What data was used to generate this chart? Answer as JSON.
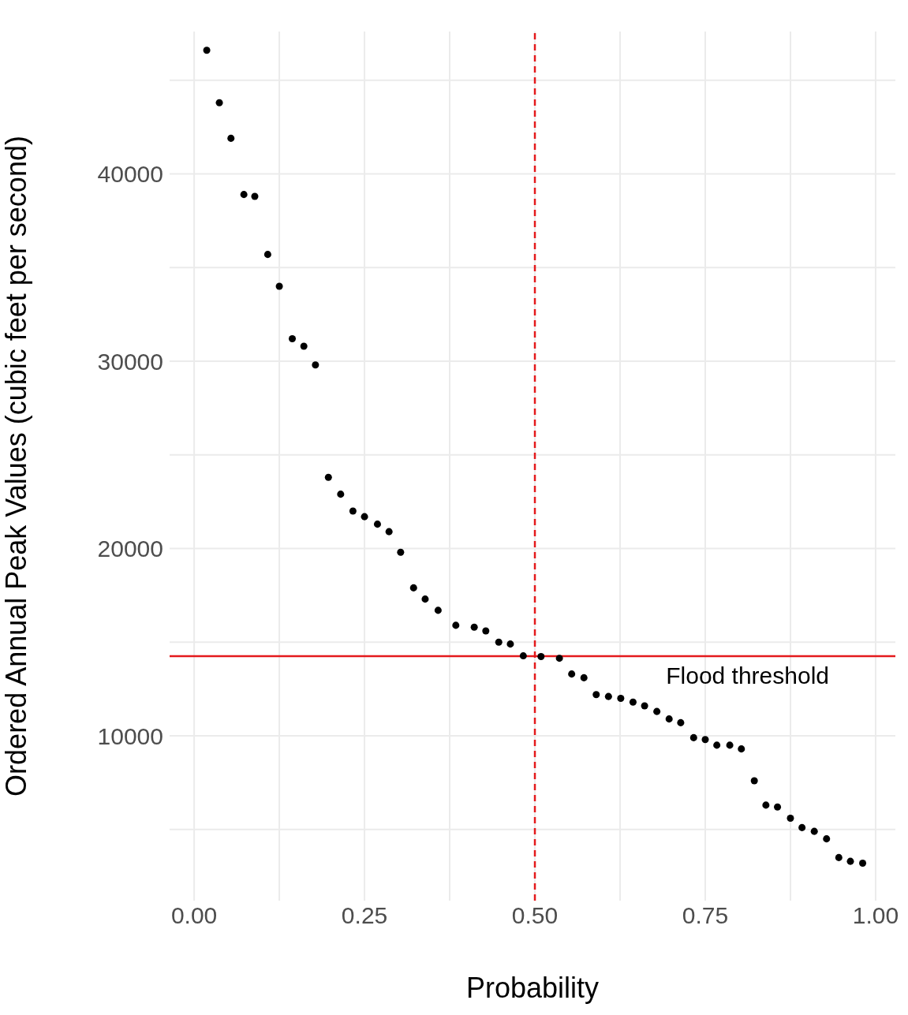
{
  "chart_data": {
    "type": "scatter",
    "xlabel": "Probability",
    "ylabel": "Ordered Annual Peak Values (cubic feet per second)",
    "x": [
      0.0185,
      0.037,
      0.054,
      0.073,
      0.089,
      0.108,
      0.125,
      0.144,
      0.161,
      0.178,
      0.197,
      0.215,
      0.233,
      0.25,
      0.269,
      0.286,
      0.303,
      0.322,
      0.339,
      0.358,
      0.384,
      0.411,
      0.428,
      0.447,
      0.464,
      0.483,
      0.509,
      0.536,
      0.554,
      0.572,
      0.59,
      0.608,
      0.626,
      0.644,
      0.661,
      0.679,
      0.697,
      0.714,
      0.733,
      0.75,
      0.767,
      0.786,
      0.803,
      0.822,
      0.839,
      0.856,
      0.875,
      0.892,
      0.91,
      0.928,
      0.946,
      0.963,
      0.981
    ],
    "series": [
      {
        "color": "#000000",
        "values": [
          46600,
          43800,
          41900,
          38900,
          38800,
          35700,
          34000,
          31200,
          30800,
          29800,
          23800,
          22900,
          22000,
          21700,
          21300,
          20900,
          19800,
          17900,
          17300,
          16700,
          15900,
          15800,
          15600,
          15000,
          14900,
          14270,
          14230,
          14140,
          13300,
          13100,
          12200,
          12100,
          12000,
          11800,
          11600,
          11300,
          10900,
          10700,
          9900,
          9800,
          9500,
          9500,
          9300,
          7600,
          6300,
          6200,
          5600,
          5100,
          4900,
          4500,
          3500,
          3300,
          3200
        ]
      }
    ],
    "xlim": [
      -0.036,
      1.029
    ],
    "ylim": [
      1200,
      47600
    ],
    "xticks": [
      {
        "value": 0,
        "label": "0.00"
      },
      {
        "value": 0.125,
        "label": null
      },
      {
        "value": 0.25,
        "label": "0.25"
      },
      {
        "value": 0.375,
        "label": null
      },
      {
        "value": 0.5,
        "label": "0.50"
      },
      {
        "value": 0.625,
        "label": null
      },
      {
        "value": 0.75,
        "label": "0.75"
      },
      {
        "value": 0.875,
        "label": null
      },
      {
        "value": 1,
        "label": "1.00"
      }
    ],
    "yticks": [
      {
        "value": 5000,
        "label": null
      },
      10000,
      {
        "value": 15000,
        "label": null
      },
      20000,
      {
        "value": 25000,
        "label": null
      },
      30000,
      {
        "value": 35000,
        "label": null
      },
      40000,
      {
        "value": 45000,
        "label": null
      }
    ],
    "grid": true,
    "marker": "circle",
    "legend": false,
    "ref_lines": [
      {
        "axis": "x",
        "value": 0.5,
        "color": "#e41a1c",
        "line_style": "dashed"
      },
      {
        "axis": "y",
        "value": 14250,
        "color": "#e41a1c",
        "line_style": "solid",
        "label": "Flood threshold"
      }
    ]
  }
}
